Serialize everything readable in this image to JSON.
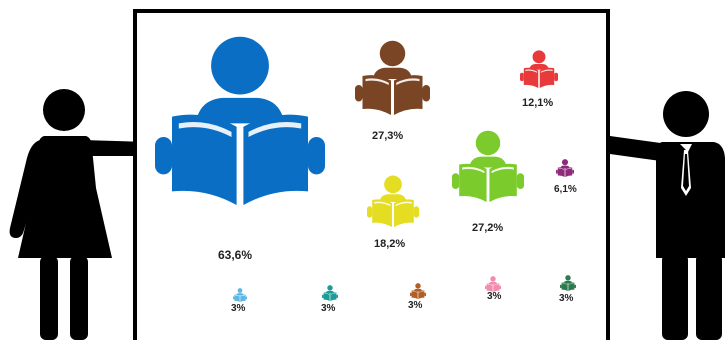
{
  "readers": [
    {
      "name": "reader-blue",
      "color": "#0A6FC4",
      "label": "63,6%"
    },
    {
      "name": "reader-brown",
      "color": "#7A4524",
      "label": "27,3%"
    },
    {
      "name": "reader-red",
      "color": "#E8393B",
      "label": "12,1%"
    },
    {
      "name": "reader-green",
      "color": "#7ACB2B",
      "label": "27,2%"
    },
    {
      "name": "reader-purple",
      "color": "#8E2A79",
      "label": "6,1%"
    },
    {
      "name": "reader-yellow",
      "color": "#E4DD22",
      "label": "18,2%"
    },
    {
      "name": "reader-lightblue",
      "color": "#5EB7E4",
      "label": "3%"
    },
    {
      "name": "reader-teal",
      "color": "#1C9C96",
      "label": "3%"
    },
    {
      "name": "reader-orange",
      "color": "#B25E24",
      "label": "3%"
    },
    {
      "name": "reader-pink",
      "color": "#F28BAE",
      "label": "3%"
    },
    {
      "name": "reader-darkgreen",
      "color": "#2C7A4E",
      "label": "3%"
    }
  ],
  "colors": {
    "figure": "#000000",
    "board_border": "#000000",
    "background": "#ffffff"
  }
}
